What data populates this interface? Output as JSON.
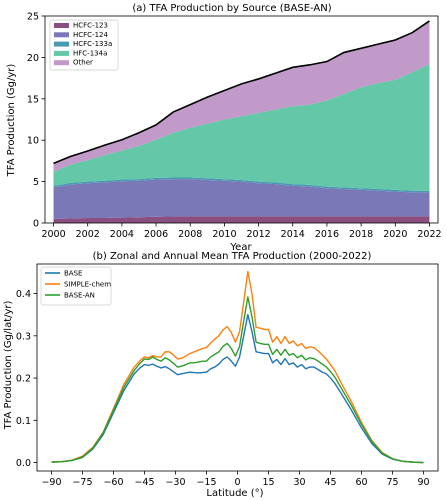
{
  "chart_data": [
    {
      "type": "area",
      "stacked": true,
      "title": "(a) TFA Production by Source (BASE-AN)",
      "xlabel": "Year",
      "ylabel": "TFA Production (Gg/yr)",
      "xlim": [
        1999.5,
        2022.5
      ],
      "ylim": [
        0,
        25
      ],
      "xticks": [
        2000,
        2002,
        2004,
        2006,
        2008,
        2010,
        2012,
        2014,
        2016,
        2018,
        2020,
        2022
      ],
      "yticks": [
        0,
        5,
        10,
        15,
        20,
        25
      ],
      "x": [
        2000,
        2001,
        2002,
        2003,
        2004,
        2005,
        2006,
        2007,
        2008,
        2009,
        2010,
        2011,
        2012,
        2013,
        2014,
        2015,
        2016,
        2017,
        2018,
        2019,
        2020,
        2021,
        2022
      ],
      "legend_position": "top-left",
      "grid": false,
      "series": [
        {
          "name": "HCFC-123",
          "color": "#8a4f80",
          "values": [
            0.5,
            0.55,
            0.6,
            0.6,
            0.65,
            0.7,
            0.75,
            0.8,
            0.8,
            0.8,
            0.8,
            0.8,
            0.8,
            0.8,
            0.8,
            0.8,
            0.8,
            0.8,
            0.8,
            0.8,
            0.8,
            0.8,
            0.8
          ]
        },
        {
          "name": "HCFC-124",
          "color": "#7b78b8",
          "values": [
            3.8,
            4.1,
            4.2,
            4.3,
            4.4,
            4.4,
            4.5,
            4.5,
            4.5,
            4.4,
            4.3,
            4.2,
            4.0,
            3.9,
            3.7,
            3.6,
            3.4,
            3.3,
            3.2,
            3.1,
            3.0,
            2.9,
            2.9
          ]
        },
        {
          "name": "HCFC-133a",
          "color": "#4a9ab3",
          "values": [
            0.2,
            0.2,
            0.2,
            0.2,
            0.2,
            0.2,
            0.2,
            0.2,
            0.2,
            0.2,
            0.2,
            0.2,
            0.2,
            0.2,
            0.2,
            0.2,
            0.2,
            0.2,
            0.2,
            0.2,
            0.2,
            0.2,
            0.2
          ]
        },
        {
          "name": "HFC-134a",
          "color": "#63c7a8",
          "values": [
            1.7,
            2.2,
            2.6,
            3.1,
            3.5,
            4.0,
            4.6,
            5.4,
            6.0,
            6.6,
            7.2,
            7.7,
            8.3,
            8.8,
            9.4,
            9.7,
            10.4,
            11.3,
            12.2,
            12.8,
            13.3,
            14.3,
            15.3
          ]
        },
        {
          "name": "Other",
          "color": "#c19ac9",
          "values": [
            1.0,
            1.0,
            1.1,
            1.2,
            1.3,
            1.6,
            1.8,
            2.5,
            2.8,
            3.2,
            3.5,
            3.9,
            4.1,
            4.4,
            4.7,
            4.8,
            4.7,
            5.0,
            4.7,
            4.7,
            4.8,
            4.8,
            5.2
          ]
        }
      ],
      "total_line_color": "#000000"
    },
    {
      "type": "line",
      "title": "(b) Zonal and Annual Mean TFA Production (2000-2022)",
      "xlabel": "Latitude (°)",
      "ylabel": "TFA Production (Gg/lat/yr)",
      "xlim": [
        -97,
        97
      ],
      "ylim": [
        -0.02,
        0.47
      ],
      "xticks": [
        -90,
        -75,
        -60,
        -45,
        -30,
        -15,
        0,
        15,
        30,
        45,
        60,
        75,
        90
      ],
      "xtick_labels": [
        "−90",
        "−75",
        "−60",
        "−45",
        "−30",
        "−15",
        "0",
        "15",
        "30",
        "45",
        "60",
        "75",
        "90"
      ],
      "yticks": [
        0.0,
        0.1,
        0.2,
        0.3,
        0.4
      ],
      "ytick_labels": [
        "0.0",
        "0.1",
        "0.2",
        "0.3",
        "0.4"
      ],
      "legend_position": "top-left",
      "grid": false,
      "x": [
        -90,
        -85,
        -80,
        -75,
        -70,
        -65,
        -60,
        -55,
        -50,
        -47,
        -45,
        -43,
        -41,
        -39,
        -37,
        -35,
        -33,
        -31,
        -29,
        -27,
        -25,
        -23,
        -21,
        -19,
        -17,
        -15,
        -13,
        -11,
        -9,
        -7,
        -5,
        -3,
        -1,
        1,
        3,
        5,
        7,
        9,
        11,
        13,
        15,
        17,
        19,
        21,
        23,
        25,
        27,
        29,
        31,
        33,
        35,
        37,
        39,
        41,
        43,
        45,
        47,
        50,
        55,
        60,
        65,
        70,
        75,
        80,
        85,
        90
      ],
      "series": [
        {
          "name": "BASE",
          "color": "#1f77b4",
          "values": [
            0.001,
            0.002,
            0.005,
            0.012,
            0.032,
            0.066,
            0.118,
            0.17,
            0.21,
            0.225,
            0.232,
            0.23,
            0.233,
            0.228,
            0.224,
            0.227,
            0.222,
            0.215,
            0.208,
            0.21,
            0.212,
            0.214,
            0.213,
            0.212,
            0.213,
            0.214,
            0.222,
            0.226,
            0.233,
            0.244,
            0.25,
            0.24,
            0.228,
            0.25,
            0.3,
            0.35,
            0.31,
            0.262,
            0.26,
            0.258,
            0.258,
            0.236,
            0.244,
            0.232,
            0.246,
            0.232,
            0.236,
            0.226,
            0.232,
            0.222,
            0.226,
            0.226,
            0.22,
            0.214,
            0.21,
            0.2,
            0.188,
            0.165,
            0.125,
            0.082,
            0.045,
            0.02,
            0.008,
            0.003,
            0.001,
            0.0
          ]
        },
        {
          "name": "SIMPLE-chem",
          "color": "#ff7f0e",
          "values": [
            0.001,
            0.002,
            0.006,
            0.015,
            0.036,
            0.072,
            0.128,
            0.185,
            0.226,
            0.242,
            0.25,
            0.248,
            0.253,
            0.25,
            0.25,
            0.262,
            0.262,
            0.255,
            0.245,
            0.247,
            0.252,
            0.258,
            0.262,
            0.266,
            0.27,
            0.272,
            0.283,
            0.292,
            0.3,
            0.314,
            0.322,
            0.308,
            0.285,
            0.31,
            0.38,
            0.452,
            0.4,
            0.32,
            0.318,
            0.315,
            0.315,
            0.285,
            0.298,
            0.282,
            0.298,
            0.282,
            0.288,
            0.276,
            0.282,
            0.27,
            0.274,
            0.272,
            0.264,
            0.255,
            0.245,
            0.232,
            0.218,
            0.19,
            0.145,
            0.095,
            0.052,
            0.024,
            0.009,
            0.003,
            0.001,
            0.0
          ]
        },
        {
          "name": "BASE-AN",
          "color": "#2ca02c",
          "values": [
            0.001,
            0.002,
            0.005,
            0.013,
            0.034,
            0.07,
            0.124,
            0.178,
            0.218,
            0.236,
            0.245,
            0.244,
            0.25,
            0.244,
            0.24,
            0.248,
            0.243,
            0.235,
            0.226,
            0.228,
            0.232,
            0.236,
            0.236,
            0.238,
            0.24,
            0.24,
            0.25,
            0.256,
            0.262,
            0.275,
            0.282,
            0.27,
            0.252,
            0.275,
            0.335,
            0.392,
            0.345,
            0.285,
            0.282,
            0.28,
            0.28,
            0.256,
            0.268,
            0.254,
            0.268,
            0.254,
            0.258,
            0.248,
            0.254,
            0.243,
            0.248,
            0.246,
            0.24,
            0.233,
            0.226,
            0.215,
            0.203,
            0.178,
            0.136,
            0.09,
            0.05,
            0.022,
            0.009,
            0.003,
            0.001,
            0.0
          ]
        }
      ]
    }
  ]
}
